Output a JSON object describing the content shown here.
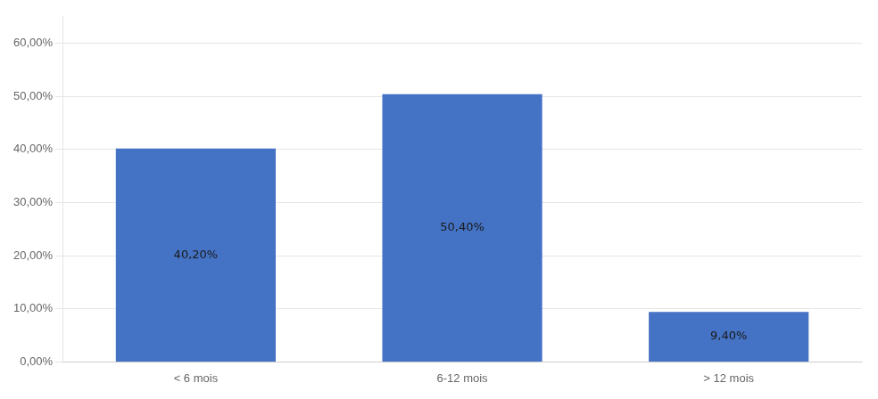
{
  "chart_data": {
    "type": "bar",
    "categories": [
      "< 6 mois",
      "6-12 mois",
      "> 12 mois"
    ],
    "values": [
      40.2,
      50.4,
      9.4
    ],
    "value_labels": [
      "40,20%",
      "50,40%",
      "9,40%"
    ],
    "data_labels": true,
    "color": "#4472C4",
    "ylim": [
      0,
      65
    ],
    "yticks": [
      {
        "value": 0,
        "label": "0,00%"
      },
      {
        "value": 10,
        "label": "10,00%"
      },
      {
        "value": 20,
        "label": "20,00%"
      },
      {
        "value": 30,
        "label": "30,00%"
      },
      {
        "value": 40,
        "label": "40,00%"
      },
      {
        "value": 50,
        "label": "50,00%"
      },
      {
        "value": 60,
        "label": "60,00%"
      }
    ],
    "grid": true
  }
}
